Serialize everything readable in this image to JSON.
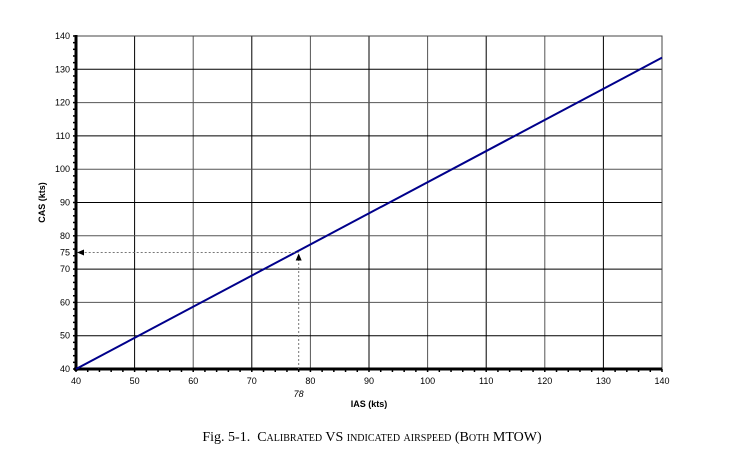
{
  "chart_data": {
    "type": "line",
    "title": "",
    "xlabel": "IAS (kts)",
    "ylabel": "CAS (kts)",
    "xlim": [
      40,
      140
    ],
    "ylim": [
      40,
      140
    ],
    "xticks": [
      40,
      50,
      60,
      70,
      80,
      90,
      100,
      110,
      120,
      130,
      140
    ],
    "yticks": [
      40,
      50,
      60,
      70,
      75,
      80,
      90,
      100,
      110,
      120,
      130,
      140
    ],
    "grid": true,
    "series": [
      {
        "name": "CAS vs IAS (Both MTOW)",
        "color": "#00008B",
        "x": [
          40,
          140
        ],
        "y": [
          40,
          133.5
        ]
      }
    ],
    "annotations": [
      {
        "type": "dotted-arrow",
        "from": [
          78,
          40
        ],
        "to": [
          78,
          75
        ],
        "label": "78"
      },
      {
        "type": "dotted-arrow",
        "from": [
          78,
          75
        ],
        "to": [
          40,
          75
        ],
        "label": "75"
      }
    ],
    "caption": "Fig. 5-1. Calibrated VS indicated airspeed (Both MTOW)"
  },
  "caption": {
    "prefix": "Fig. 5-1.",
    "text": "Calibrated VS indicated airspeed (Both MTOW)"
  }
}
